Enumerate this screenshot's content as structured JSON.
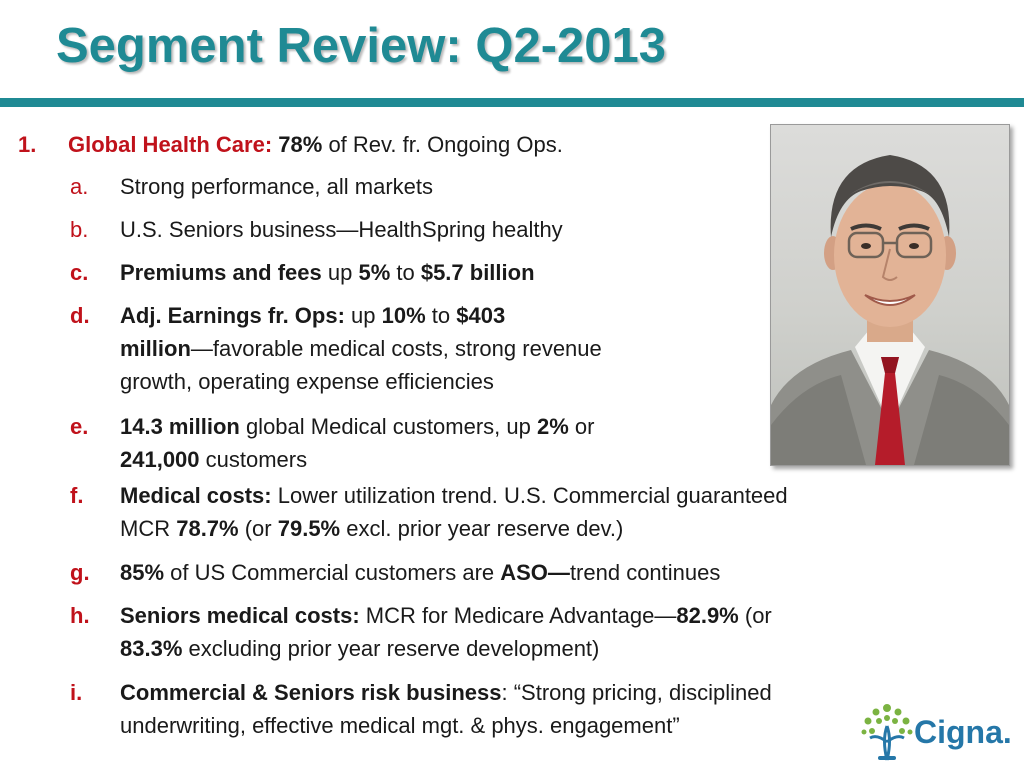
{
  "slide": {
    "title": "Segment Review: Q2-2013"
  },
  "item1": {
    "number": "1.",
    "label": "Global Health Care:",
    "pct": "78%",
    "rest": " of Rev. fr. Ongoing Ops."
  },
  "subs": {
    "a": {
      "letter": "a.",
      "text": "Strong performance, all markets"
    },
    "b": {
      "letter": "b.",
      "text": "U.S. Seniors business—HealthSpring healthy"
    },
    "c": {
      "letter": "c.",
      "t1": "Premiums and fees",
      "t2": " up ",
      "t3": "5%",
      "t4": " to ",
      "t5": "$5.7 billion"
    },
    "d": {
      "letter": "d.",
      "t1": "Adj. Earnings fr. Ops:",
      "t2": " up ",
      "t3": "10%",
      "t4": " to ",
      "t5": "$403",
      "t6": "million",
      "t7": "—favorable medical costs, strong revenue",
      "t8": "growth, operating expense efficiencies"
    },
    "e": {
      "letter": "e.",
      "t1": "14.3 million",
      "t2": " global Medical customers, up ",
      "t3": "2%",
      "t4": " or",
      "t5": "241,000",
      "t6": " customers"
    },
    "f": {
      "letter": "f.",
      "t1": "Medical costs:",
      "t2": " Lower utilization trend. U.S. Commercial guaranteed",
      "t3": "MCR ",
      "t4": "78.7%",
      "t5": " (or ",
      "t6": "79.5%",
      "t7": " excl. prior year reserve dev.)"
    },
    "g": {
      "letter": "g.",
      "t1": "85%",
      "t2": " of US Commercial customers are ",
      "t3": "ASO—",
      "t4": "trend continues"
    },
    "h": {
      "letter": "h.",
      "t1": "Seniors medical costs:",
      "t2": " MCR for Medicare Advantage—",
      "t3": "82.9%",
      "t4": " (or",
      "t5": "83.3%",
      "t6": " excluding prior year reserve development)"
    },
    "i": {
      "letter": "i.",
      "t1": "Commercial & Seniors risk business",
      "t2": ":  “Strong pricing, disciplined",
      "t3": "underwriting, effective medical mgt. & phys. engagement”"
    }
  },
  "logo": {
    "text": "Cigna.",
    "icon": "tree-of-life-icon"
  },
  "colors": {
    "teal": "#1f8a94",
    "red": "#c0121b",
    "logo_blue": "#2577a8",
    "logo_green": "#7bb342"
  }
}
